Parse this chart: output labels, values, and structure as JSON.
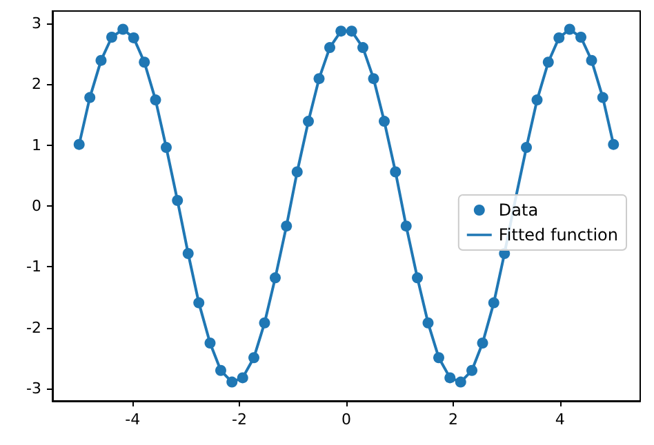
{
  "chart_data": {
    "type": "scatter",
    "x": [
      -5,
      -4.8,
      -4.59,
      -4.39,
      -4.18,
      -3.98,
      -3.78,
      -3.57,
      -3.37,
      -3.16,
      -2.96,
      -2.76,
      -2.55,
      -2.35,
      -2.14,
      -1.94,
      -1.73,
      -1.53,
      -1.33,
      -1.12,
      -0.92,
      -0.71,
      -0.51,
      -0.31,
      -0.1,
      0.1,
      0.31,
      0.51,
      0.71,
      0.92,
      1.12,
      1.33,
      1.53,
      1.73,
      1.94,
      2.14,
      2.35,
      2.55,
      2.76,
      2.96,
      3.16,
      3.37,
      3.57,
      3.78,
      3.98,
      4.18,
      4.39,
      4.59,
      4.8,
      5
    ],
    "series": [
      {
        "name": "Data",
        "type": "scatter",
        "color": "#1f77b4",
        "marker": "circle",
        "values": [
          1.01,
          1.78,
          2.39,
          2.77,
          2.9,
          2.76,
          2.36,
          1.74,
          0.96,
          0.09,
          -0.78,
          -1.59,
          -2.25,
          -2.7,
          -2.89,
          -2.82,
          -2.49,
          -1.92,
          -1.18,
          -0.33,
          0.56,
          1.39,
          2.09,
          2.6,
          2.87,
          2.87,
          2.6,
          2.09,
          1.39,
          0.56,
          -0.33,
          -1.18,
          -1.92,
          -2.49,
          -2.82,
          -2.89,
          -2.7,
          -2.25,
          -1.59,
          -0.78,
          null,
          0.96,
          1.74,
          2.36,
          2.76,
          2.9,
          2.77,
          2.39,
          1.78,
          1.01
        ]
      },
      {
        "name": "Fitted function",
        "type": "line",
        "color": "#1f77b4",
        "marker": "none",
        "line_style": "solid",
        "values": [
          1.01,
          1.78,
          2.39,
          2.77,
          2.9,
          2.76,
          2.36,
          1.74,
          0.96,
          0.09,
          -0.78,
          -1.59,
          -2.25,
          -2.7,
          -2.89,
          -2.82,
          -2.49,
          -1.92,
          -1.18,
          -0.33,
          0.56,
          1.39,
          2.09,
          2.6,
          2.87,
          2.87,
          2.6,
          2.09,
          1.39,
          0.56,
          -0.33,
          -1.18,
          -1.92,
          -2.49,
          -2.82,
          -2.89,
          -2.7,
          -2.25,
          -1.59,
          -0.78,
          0.09,
          0.96,
          1.74,
          2.36,
          2.76,
          2.9,
          2.77,
          2.39,
          1.78,
          1.01
        ]
      }
    ],
    "xlim": [
      -5.5,
      5.5
    ],
    "xticks": [
      -4,
      -2,
      0,
      2,
      4
    ],
    "ylim": [
      -3.2,
      3.2
    ],
    "yticks": [
      -3,
      -2,
      -1,
      0,
      1,
      2,
      3
    ],
    "grid": false,
    "legend": "right"
  }
}
